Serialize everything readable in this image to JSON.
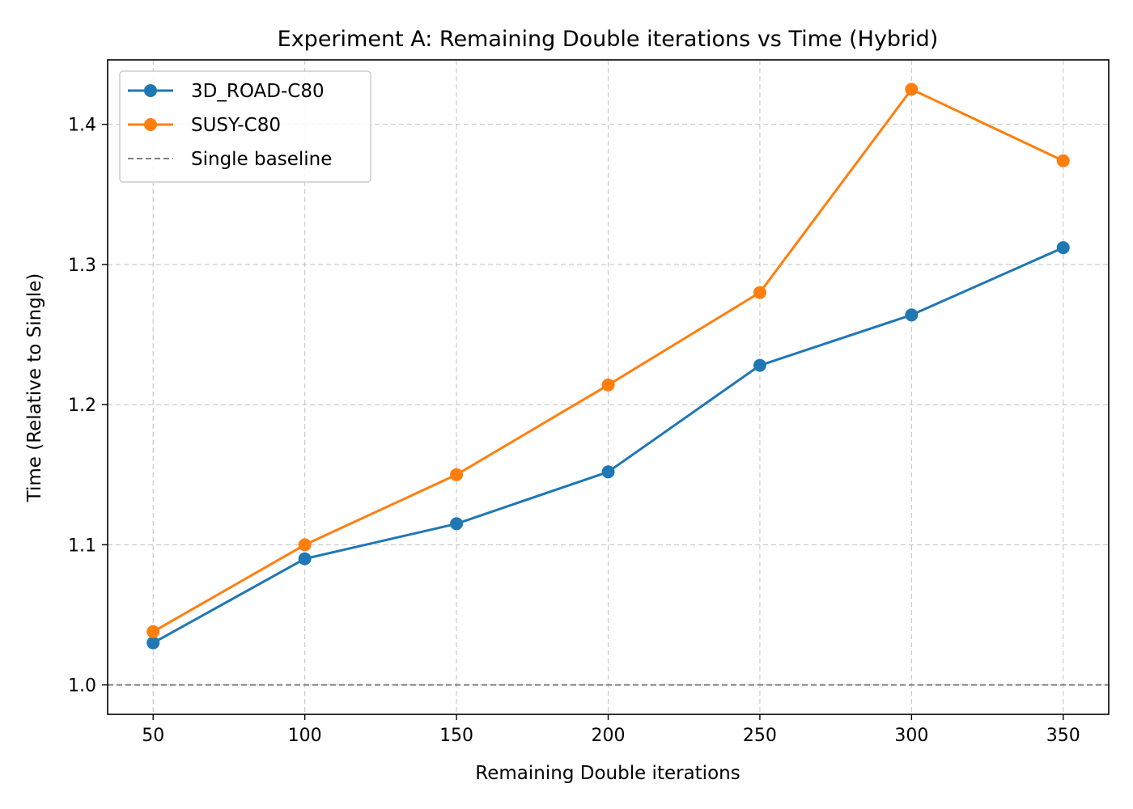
{
  "chart_data": {
    "type": "line",
    "title": "Experiment A: Remaining Double iterations vs Time (Hybrid)",
    "xlabel": "Remaining Double iterations",
    "ylabel": "Time (Relative to Single)",
    "x": [
      50,
      100,
      150,
      200,
      250,
      300,
      350
    ],
    "x_ticks": [
      "50",
      "100",
      "150",
      "200",
      "250",
      "300",
      "350"
    ],
    "y_ticks": [
      "1.0",
      "1.1",
      "1.2",
      "1.3",
      "1.4"
    ],
    "xlim": [
      35,
      365
    ],
    "ylim": [
      0.979,
      1.446
    ],
    "grid": true,
    "legend_position": "top-left",
    "series": [
      {
        "name": "3D_ROAD-C80",
        "color": "#1f77b4",
        "values": [
          1.03,
          1.09,
          1.115,
          1.152,
          1.228,
          1.264,
          1.312
        ]
      },
      {
        "name": "SUSY-C80",
        "color": "#ff7f0e",
        "values": [
          1.038,
          1.1,
          1.15,
          1.214,
          1.28,
          1.425,
          1.374
        ]
      }
    ],
    "baseline": {
      "name": "Single baseline",
      "value": 1.0,
      "color": "#808080"
    }
  }
}
